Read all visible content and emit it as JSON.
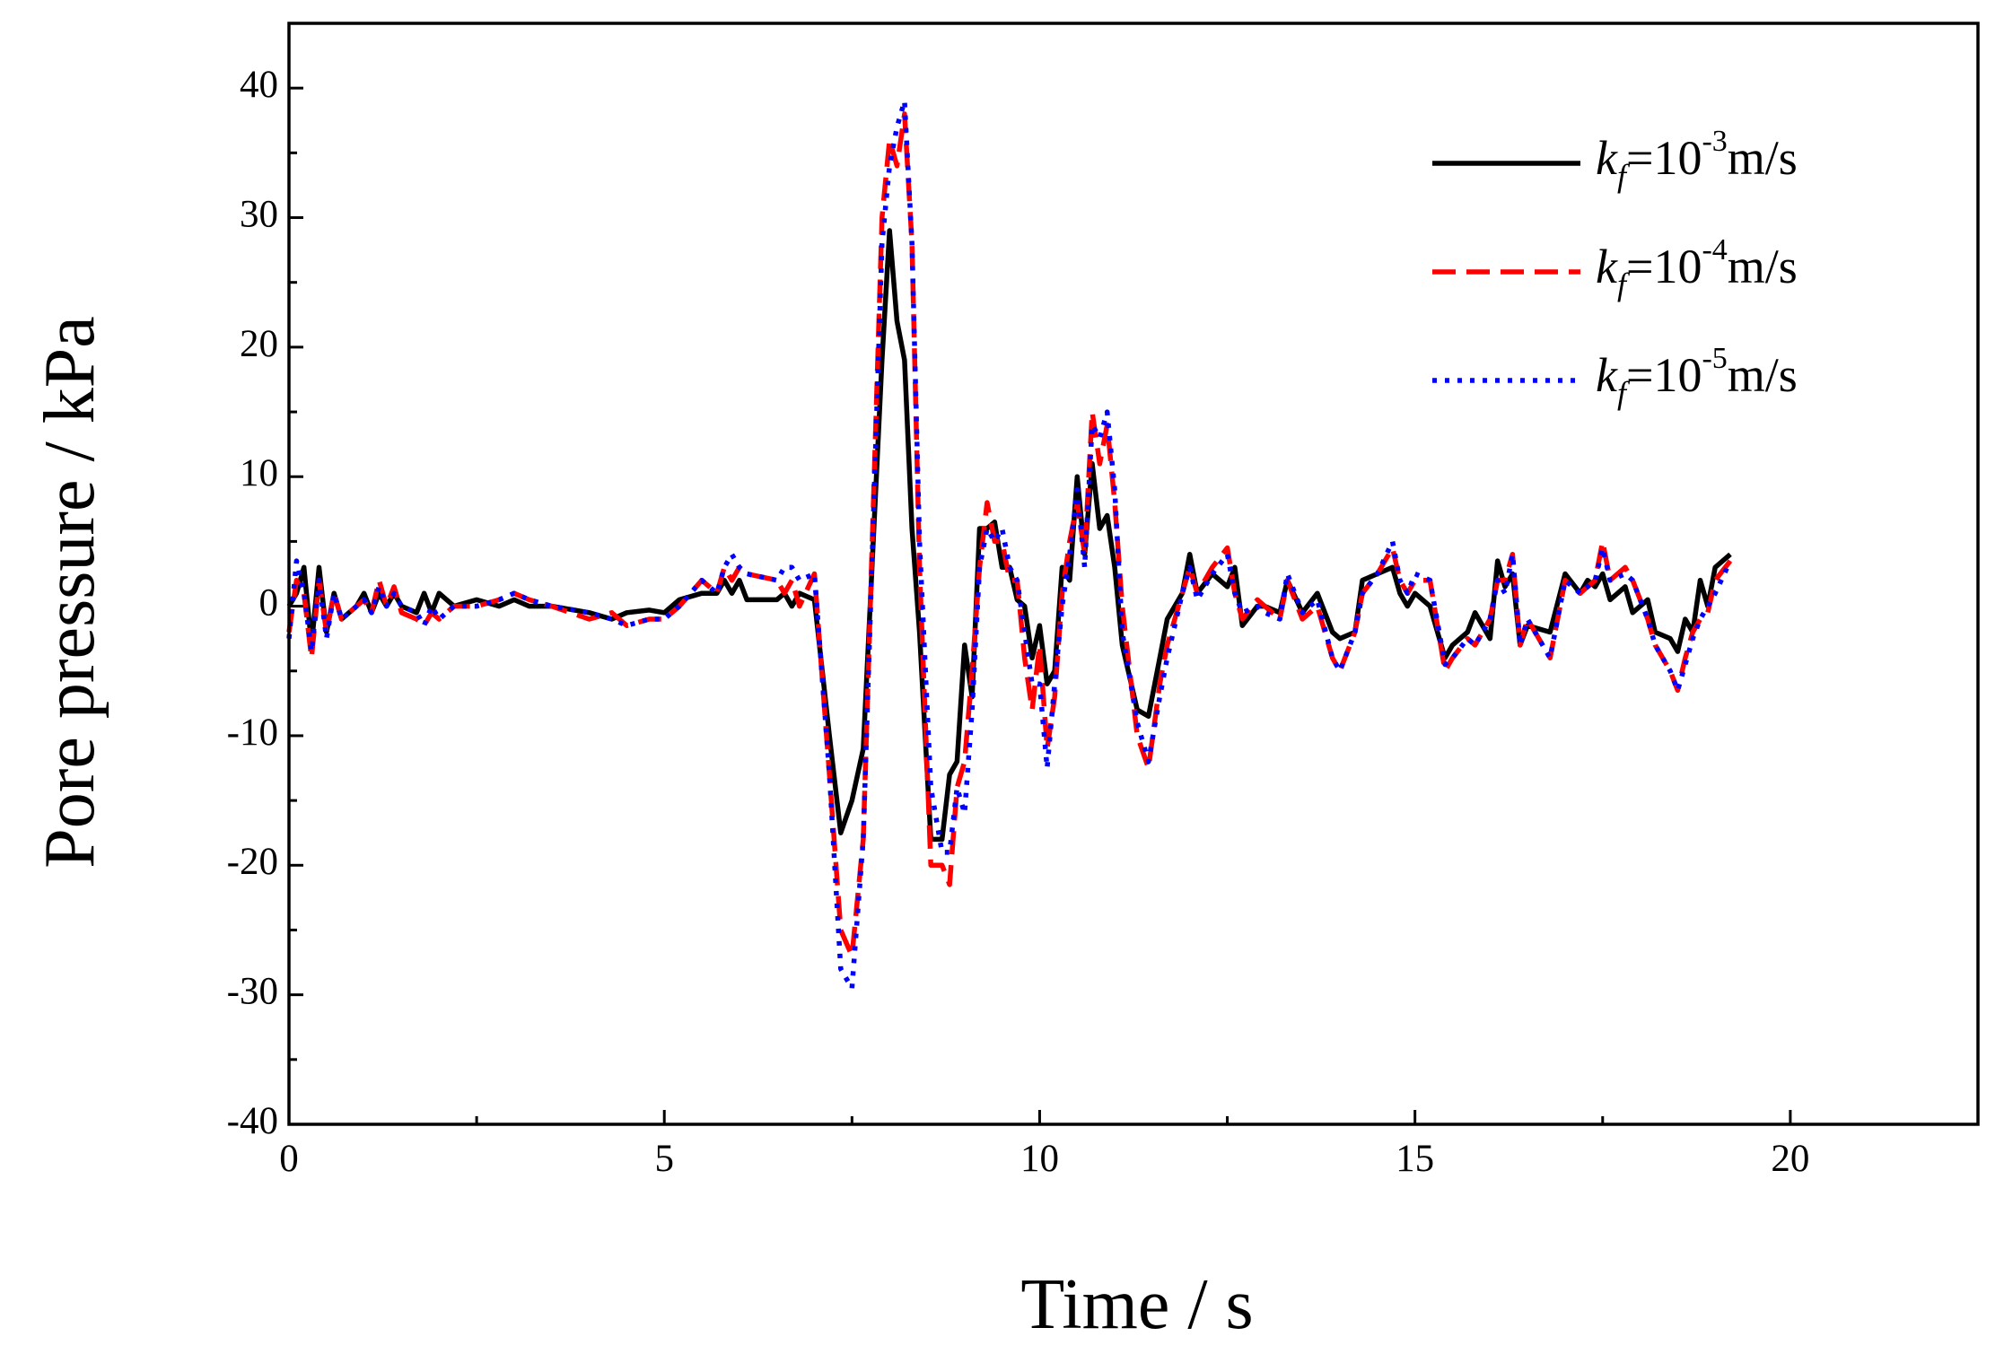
{
  "chart_data": {
    "type": "line",
    "x_label": "Time / s",
    "y_label": "Pore pressure / kPa",
    "xlim": [
      0,
      22.5
    ],
    "ylim": [
      -40,
      45
    ],
    "xticks": [
      0,
      5,
      10,
      15,
      20
    ],
    "xminorticks": [
      2.5,
      7.5,
      12.5,
      17.5
    ],
    "yticks": [
      -40,
      -30,
      -20,
      -10,
      0,
      10,
      20,
      30,
      40
    ],
    "yminorticks": [
      -35,
      -25,
      -15,
      -5,
      5,
      15,
      25,
      35
    ],
    "legend": "upper right",
    "x": [
      0,
      0.1,
      0.2,
      0.3,
      0.4,
      0.5,
      0.6,
      0.7,
      0.9,
      1.0,
      1.1,
      1.2,
      1.3,
      1.4,
      1.5,
      1.7,
      1.8,
      1.9,
      2.0,
      2.2,
      2.5,
      2.8,
      3.0,
      3.2,
      3.5,
      4.0,
      4.3,
      4.5,
      4.8,
      5.0,
      5.2,
      5.5,
      5.7,
      5.8,
      5.9,
      6.0,
      6.1,
      6.5,
      6.6,
      6.7,
      6.8,
      7.0,
      7.2,
      7.35,
      7.5,
      7.65,
      7.9,
      8.0,
      8.1,
      8.2,
      8.3,
      8.4,
      8.55,
      8.7,
      8.8,
      8.9,
      9.0,
      9.1,
      9.2,
      9.3,
      9.4,
      9.5,
      9.6,
      9.7,
      9.8,
      9.9,
      10.0,
      10.1,
      10.2,
      10.3,
      10.4,
      10.5,
      10.6,
      10.7,
      10.8,
      10.9,
      11.0,
      11.1,
      11.3,
      11.45,
      11.6,
      11.7,
      11.9,
      12.0,
      12.1,
      12.3,
      12.5,
      12.6,
      12.7,
      12.9,
      13.0,
      13.2,
      13.3,
      13.5,
      13.7,
      13.9,
      14.0,
      14.2,
      14.3,
      14.5,
      14.7,
      14.8,
      14.9,
      15.0,
      15.2,
      15.4,
      15.5,
      15.7,
      15.8,
      16.0,
      16.1,
      16.2,
      16.3,
      16.4,
      16.5,
      16.8,
      17.0,
      17.2,
      17.3,
      17.4,
      17.5,
      17.6,
      17.8,
      17.9,
      18.1,
      18.2,
      18.4,
      18.5,
      18.6,
      18.7,
      18.8,
      18.9,
      19.0,
      19.2
    ],
    "series": [
      {
        "name": "kf=10-3m/s",
        "color": "#000000",
        "dash": "solid",
        "values": [
          0,
          1,
          3,
          -3,
          3,
          -2,
          1,
          -1,
          0,
          1,
          -0.5,
          1,
          0,
          1,
          0,
          -0.5,
          1,
          -0.5,
          1,
          0,
          0.5,
          0,
          0.5,
          0,
          0,
          -0.5,
          -1,
          -0.5,
          -0.3,
          -0.5,
          0.5,
          1,
          1,
          2,
          1,
          2,
          0.5,
          0.5,
          1,
          0,
          1,
          0.5,
          -10,
          -17.5,
          -15,
          -11,
          19,
          29,
          22,
          19,
          6,
          -2,
          -18,
          -18,
          -13,
          -12,
          -3,
          -7,
          6,
          6,
          6.5,
          3,
          3,
          0.5,
          0,
          -4,
          -1.5,
          -6,
          -5,
          3,
          2,
          10,
          4,
          11,
          6,
          7,
          3,
          -3,
          -8,
          -8.5,
          -4,
          -1,
          1,
          4,
          1,
          2.5,
          1.5,
          3,
          -1.5,
          0,
          0,
          -0.5,
          2,
          -0.5,
          1,
          -2,
          -2.5,
          -2,
          2,
          2.5,
          3,
          1,
          0,
          1,
          0,
          -4,
          -3,
          -2,
          -0.5,
          -2.5,
          3.5,
          1.5,
          2.5,
          -3,
          -1.5,
          -2,
          2.5,
          1,
          2,
          1.5,
          2.5,
          0.5,
          1.5,
          -0.5,
          0.5,
          -2,
          -2.5,
          -3.5,
          -1,
          -2,
          2,
          0,
          3,
          4
        ]
      },
      {
        "name": "kf=10-4m/s",
        "color": "#ff0000",
        "dash": "dash",
        "values": [
          -2,
          2,
          1,
          -4,
          2,
          -2,
          1,
          -1,
          0,
          0.5,
          -0.5,
          2,
          0,
          1.5,
          -0.5,
          -1,
          -1.5,
          -0.5,
          -1,
          0,
          0,
          0.5,
          1,
          0.5,
          0,
          -1,
          -0.5,
          -1.5,
          -1,
          -1,
          0,
          2,
          1,
          3,
          2,
          3,
          2.5,
          2,
          1,
          2,
          0,
          2.5,
          -13,
          -25,
          -27,
          -18,
          30,
          36,
          34,
          38,
          28,
          3,
          -20,
          -20,
          -21.5,
          -14,
          -12,
          -5,
          3,
          8,
          5,
          5,
          2,
          2,
          -4,
          -8,
          -3,
          -11,
          -7,
          1,
          5,
          8,
          4,
          15,
          11,
          14,
          8,
          0,
          -10,
          -12.5,
          -6,
          -3,
          1,
          3,
          1,
          3,
          4.5,
          1,
          -1,
          0.5,
          0,
          -1,
          2,
          -1,
          0,
          -4,
          -5,
          -2,
          1,
          2.5,
          4.5,
          2,
          1,
          2,
          2,
          -5,
          -4,
          -2.5,
          -3,
          -1,
          2,
          2,
          4,
          -3,
          -1,
          -4,
          2,
          1,
          1.5,
          2,
          5,
          2,
          3,
          2,
          -1,
          -3,
          -5,
          -6.5,
          -4,
          -2,
          -1,
          -0.5,
          2,
          3.5
        ]
      },
      {
        "name": "kf=10-5m/s",
        "color": "#0000ff",
        "dash": "dot",
        "values": [
          -2.5,
          3.5,
          1,
          -3.5,
          2,
          -2.5,
          1,
          -1,
          0,
          0.5,
          -0.5,
          1.5,
          0,
          1,
          0,
          -0.5,
          -1.5,
          0,
          -1,
          0,
          0,
          0.5,
          1,
          0.5,
          0,
          -0.5,
          -1,
          -1.5,
          -1,
          -1,
          0,
          2,
          1,
          3,
          4,
          3,
          2.5,
          2,
          3,
          3,
          2,
          2.5,
          -13,
          -28,
          -29.5,
          -18,
          28,
          34,
          37,
          39,
          28,
          5,
          -14,
          -19,
          -19,
          -14,
          -16,
          -8,
          3,
          6,
          5,
          6,
          3,
          2,
          -2,
          -6,
          -6,
          -12.5,
          -6,
          0,
          4,
          9,
          3,
          14,
          13,
          15,
          9,
          -2,
          -9,
          -12,
          -7,
          -4,
          1,
          3,
          0.5,
          2.5,
          4,
          1,
          -0.5,
          0,
          -0.5,
          -1,
          2.5,
          -0.5,
          0.5,
          -4,
          -5,
          -2,
          1,
          2.5,
          5,
          2,
          1,
          2.5,
          2,
          -4.5,
          -4,
          -2.5,
          -3,
          -1,
          2,
          1,
          4,
          -3,
          -1,
          -4,
          2,
          1,
          1.5,
          2,
          4.5,
          2,
          2.5,
          2,
          -1,
          -3,
          -5,
          -6.5,
          -4.5,
          -2.5,
          -1,
          0,
          1,
          3.5
        ]
      }
    ]
  }
}
